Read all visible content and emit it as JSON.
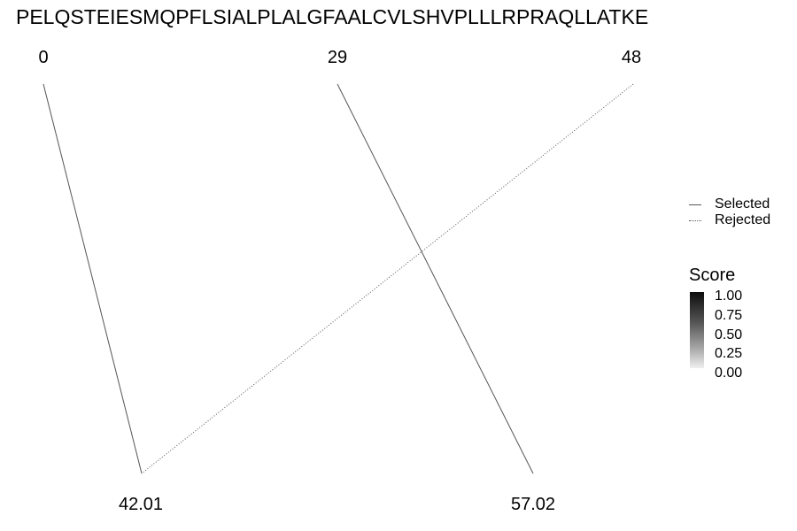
{
  "sequence": "PELQSTEIESMQPFLSIALPLALGFAALCVLSHVPLLLRPRAQLLATKE",
  "top_nodes": [
    {
      "label": "0"
    },
    {
      "label": "29"
    },
    {
      "label": "48"
    }
  ],
  "bottom_nodes": [
    {
      "label": "42.01"
    },
    {
      "label": "57.02"
    }
  ],
  "edges": [
    {
      "from": "0",
      "to": "42.01",
      "status": "Selected"
    },
    {
      "from": "29",
      "to": "57.02",
      "status": "Selected"
    },
    {
      "from": "48",
      "to": "42.01",
      "status": "Rejected"
    }
  ],
  "line_legend": {
    "selected": "Selected",
    "rejected": "Rejected"
  },
  "score_legend": {
    "title": "Score",
    "ticks": [
      "1.00",
      "0.75",
      "0.50",
      "0.25",
      "0.00"
    ]
  },
  "colors": {
    "line": "#555555",
    "text": "#000000",
    "background": "#ffffff"
  }
}
